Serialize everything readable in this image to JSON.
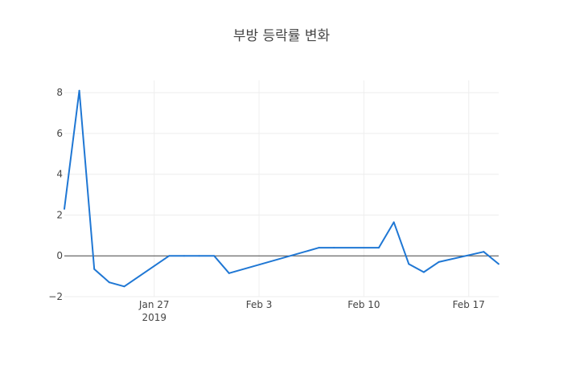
{
  "chart_data": {
    "type": "line",
    "title": "부방 등락률 변화",
    "xlabel": "",
    "ylabel": "",
    "x": [
      "2019-01-21",
      "2019-01-22",
      "2019-01-23",
      "2019-01-24",
      "2019-01-25",
      "2019-01-28",
      "2019-01-29",
      "2019-01-30",
      "2019-01-31",
      "2019-02-01",
      "2019-02-07",
      "2019-02-08",
      "2019-02-11",
      "2019-02-12",
      "2019-02-13",
      "2019-02-14",
      "2019-02-15",
      "2019-02-18",
      "2019-02-19"
    ],
    "series": [
      {
        "color": "#1f77d4",
        "values": [
          2.3,
          8.1,
          -0.65,
          -1.3,
          -1.5,
          0.0,
          0.0,
          0.0,
          0.0,
          -0.85,
          0.4,
          0.4,
          0.4,
          1.65,
          -0.4,
          -0.8,
          -0.3,
          0.2,
          -0.4
        ]
      }
    ],
    "xlim": [
      "2019-01-21",
      "2019-02-19"
    ],
    "ylim": [
      -2,
      8.6
    ],
    "y_ticks": [
      -2,
      0,
      2,
      4,
      6,
      8
    ],
    "y_tick_labels": [
      "−2",
      "0",
      "2",
      "4",
      "6",
      "8"
    ],
    "x_ticks": [
      "2019-01-27",
      "2019-02-03",
      "2019-02-10",
      "2019-02-17"
    ],
    "x_tick_labels": [
      [
        "Jan 27",
        "2019"
      ],
      [
        "Feb 3"
      ],
      [
        "Feb 10"
      ],
      [
        "Feb 17"
      ]
    ],
    "grid": true,
    "legend": "none"
  }
}
